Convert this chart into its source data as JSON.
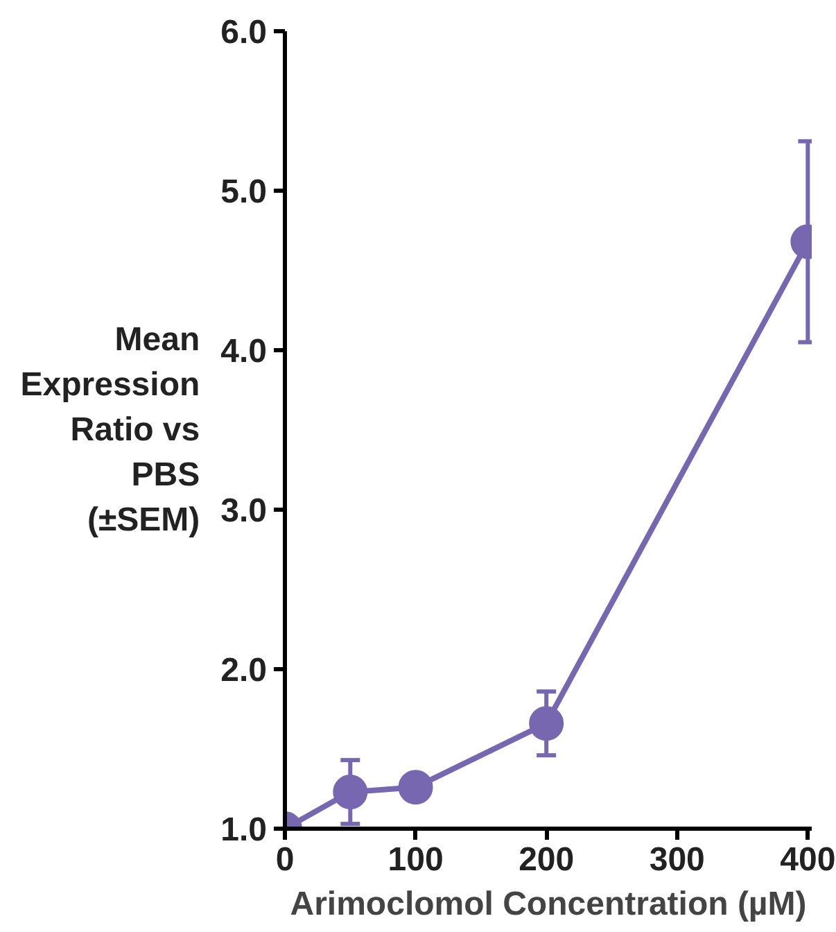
{
  "chart_data": {
    "type": "line",
    "xlabel": "Arimoclomol Concentration (µM)",
    "ylabel": "Mean\nExpression\nRatio vs\nPBS\n(±SEM)",
    "x": [
      0,
      50,
      100,
      200,
      400
    ],
    "series": [
      {
        "color": "#7767b0",
        "values": [
          1.0,
          1.23,
          1.26,
          1.66,
          4.68
        ],
        "errors": [
          null,
          0.2,
          null,
          0.2,
          0.63
        ]
      }
    ],
    "xlim": [
      0,
      403
    ],
    "ylim": [
      1,
      6
    ],
    "xticks": [
      0,
      100,
      200,
      300,
      400
    ],
    "yticks": [
      {
        "value": 1,
        "label": "1.0"
      },
      {
        "value": 2,
        "label": "2.0"
      },
      {
        "value": 3,
        "label": "3.0"
      },
      {
        "value": 4,
        "label": "4.0"
      },
      {
        "value": 5,
        "label": "5.0"
      },
      {
        "value": 6,
        "label": "6.0"
      }
    ],
    "grid": false,
    "marker": "circle",
    "line_style": "solid"
  }
}
